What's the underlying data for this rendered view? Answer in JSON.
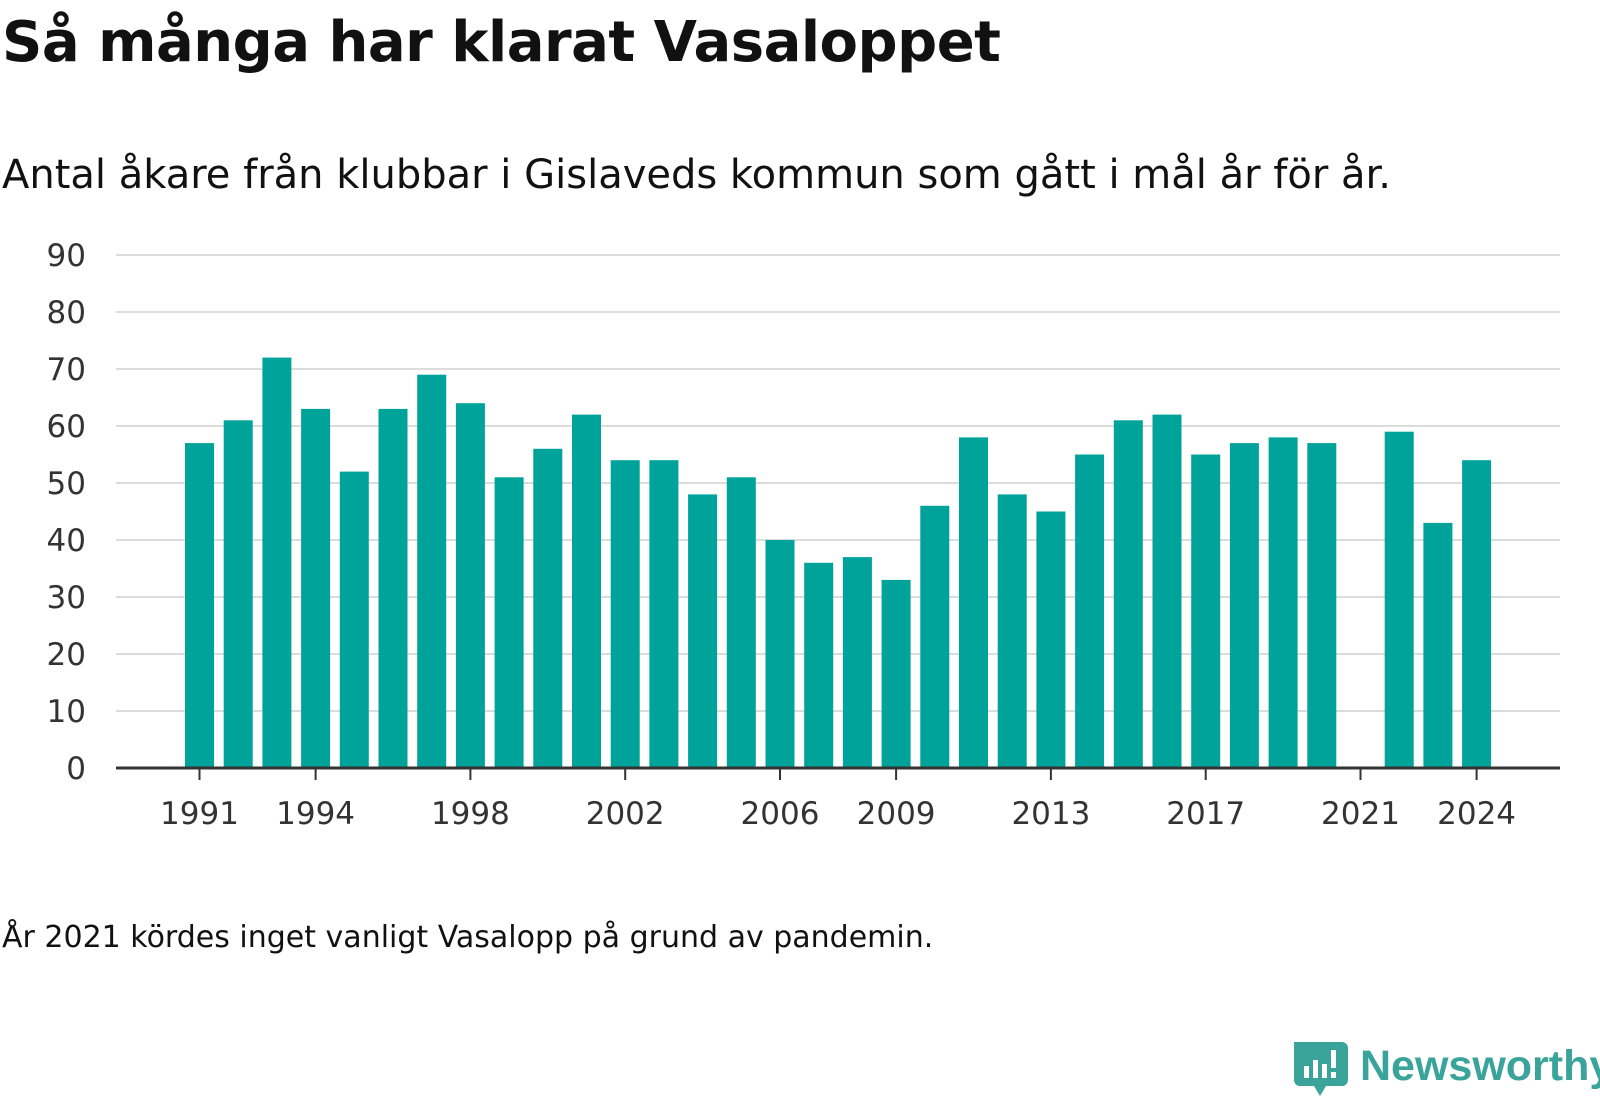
{
  "title": "Så många har klarat Vasaloppet",
  "subtitle": "Antal åkare från klubbar i Gislaveds kommun som gått i mål år för år.",
  "note": "År 2021 kördes inget vanligt Vasalopp på grund av pandemin.",
  "logo": {
    "text": "Newsworthy",
    "icon": "newsworthy-chat-bar-icon",
    "color": "#3aa39a"
  },
  "colors": {
    "bar": "#00a39a",
    "grid": "#dcdcdc",
    "axis": "#333333",
    "text": "#111111"
  },
  "chart_data": {
    "type": "bar",
    "x": [
      1991,
      1992,
      1993,
      1994,
      1995,
      1996,
      1997,
      1998,
      1999,
      2000,
      2001,
      2002,
      2003,
      2004,
      2005,
      2006,
      2007,
      2008,
      2009,
      2010,
      2011,
      2012,
      2013,
      2014,
      2015,
      2016,
      2017,
      2018,
      2019,
      2020,
      2021,
      2022,
      2023,
      2024
    ],
    "values": [
      57,
      61,
      72,
      63,
      52,
      63,
      69,
      64,
      51,
      56,
      62,
      54,
      54,
      48,
      51,
      40,
      36,
      37,
      33,
      46,
      58,
      48,
      45,
      55,
      61,
      62,
      55,
      57,
      58,
      57,
      null,
      59,
      43,
      54
    ],
    "x_tick_labels": [
      1991,
      1994,
      1998,
      2002,
      2006,
      2009,
      2013,
      2017,
      2021,
      2024
    ],
    "y_ticks": [
      0,
      10,
      20,
      30,
      40,
      50,
      60,
      70,
      80,
      90
    ],
    "ylim": [
      0,
      90
    ],
    "grid": true,
    "legend": "none",
    "xlabel": "",
    "ylabel": ""
  }
}
